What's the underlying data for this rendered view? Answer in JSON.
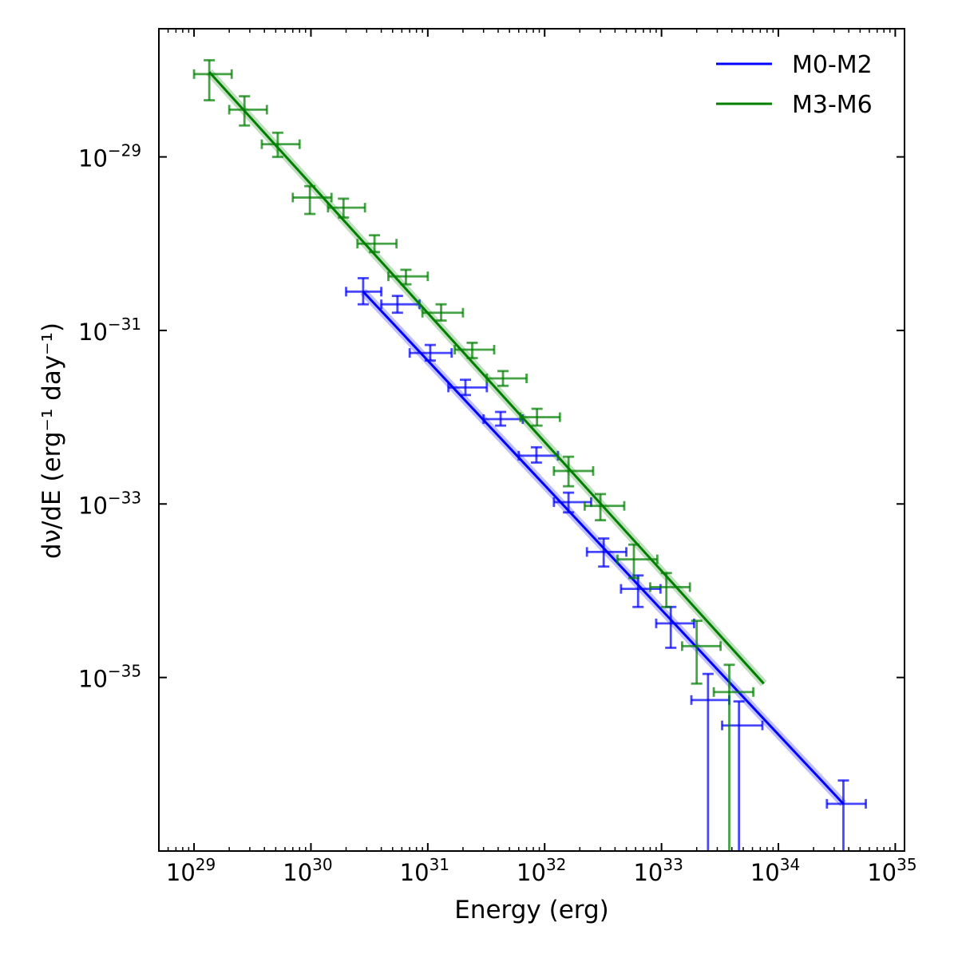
{
  "chart_data": {
    "type": "line",
    "title": "",
    "xlabel": "Energy (erg)",
    "ylabel": "dν/dE (erg⁻¹ day⁻¹)",
    "xscale": "log",
    "yscale": "log",
    "xlim": [
      5e+28,
      1.2e+35
    ],
    "ylim": [
      1e-37,
      3e-28
    ],
    "grid": false,
    "legend_position": "top-right",
    "x_ticks": [
      {
        "base": "10",
        "exp": "29",
        "value": 1e+29
      },
      {
        "base": "10",
        "exp": "30",
        "value": 1e+30
      },
      {
        "base": "10",
        "exp": "31",
        "value": 1e+31
      },
      {
        "base": "10",
        "exp": "32",
        "value": 1e+32
      },
      {
        "base": "10",
        "exp": "33",
        "value": 1e+33
      },
      {
        "base": "10",
        "exp": "34",
        "value": 1e+34
      },
      {
        "base": "10",
        "exp": "35",
        "value": 1e+35
      }
    ],
    "y_ticks": [
      {
        "base": "10",
        "exp": "−29",
        "value": 1e-29
      },
      {
        "base": "10",
        "exp": "−31",
        "value": 1e-31
      },
      {
        "base": "10",
        "exp": "−33",
        "value": 1e-33
      },
      {
        "base": "10",
        "exp": "−35",
        "value": 1e-35
      }
    ],
    "series": [
      {
        "name": "M0-M2",
        "color": "#0000ff",
        "fit": {
          "x": [
            2.8e+30,
            3.6e+34
          ],
          "y": [
            2.8e-31,
            3.5e-37
          ]
        },
        "points": [
          {
            "x": 2.8e+30,
            "xerr": [
              2e+30,
              4e+30
            ],
            "y": 2.8e-31,
            "yerr": [
              2e-31,
              4e-31
            ]
          },
          {
            "x": 5.5e+30,
            "xerr": [
              4e+30,
              8.5e+30
            ],
            "y": 2e-31,
            "yerr": [
              1.6e-31,
              2.5e-31
            ]
          },
          {
            "x": 1.05e+31,
            "xerr": [
              7e+30,
              1.6e+31
            ],
            "y": 5.5e-32,
            "yerr": [
              4.5e-32,
              6.8e-32
            ]
          },
          {
            "x": 2.1e+31,
            "xerr": [
              1.5e+31,
              3.2e+31
            ],
            "y": 2.2e-32,
            "yerr": [
              1.8e-32,
              2.7e-32
            ]
          },
          {
            "x": 4.2e+31,
            "xerr": [
              3e+31,
              6.5e+31
            ],
            "y": 9.5e-33,
            "yerr": [
              8e-33,
              1.15e-32
            ]
          },
          {
            "x": 8.5e+31,
            "xerr": [
              6e+31,
              1.3e+32
            ],
            "y": 3.6e-33,
            "yerr": [
              3e-33,
              4.5e-33
            ]
          },
          {
            "x": 1.6e+32,
            "xerr": [
              1.2e+32,
              2.5e+32
            ],
            "y": 1.05e-33,
            "yerr": [
              8e-34,
              1.35e-33
            ]
          },
          {
            "x": 3.2e+32,
            "xerr": [
              2.3e+32,
              5e+32
            ],
            "y": 2.8e-34,
            "yerr": [
              1.9e-34,
              4e-34
            ]
          },
          {
            "x": 6.3e+32,
            "xerr": [
              4.5e+32,
              9.8e+32
            ],
            "y": 1.05e-34,
            "yerr": [
              6.5e-35,
              1.5e-34
            ]
          },
          {
            "x": 1.2e+33,
            "xerr": [
              9e+32,
              1.9e+33
            ],
            "y": 4.2e-35,
            "yerr": [
              2.2e-35,
              6.5e-35
            ]
          },
          {
            "x": 2.5e+33,
            "xerr": [
              1.8e+33,
              3.8e+33
            ],
            "y": 5.5e-36,
            "yerr": [
              1e-37,
              1.1e-35
            ]
          },
          {
            "x": 4.6e+33,
            "xerr": [
              3.3e+33,
              7.3e+33
            ],
            "y": 2.8e-36,
            "yerr": [
              1e-37,
              5.3e-36
            ]
          },
          {
            "x": 3.6e+34,
            "xerr": [
              2.6e+34,
              5.6e+34
            ],
            "y": 3.5e-37,
            "yerr": [
              1e-37,
              6.5e-37
            ]
          }
        ]
      },
      {
        "name": "M3-M6",
        "color": "#007f00",
        "fit": {
          "x": [
            1.35e+29,
            7.5e+33
          ],
          "y": [
            9.5e-29,
            8.5e-36
          ]
        },
        "points": [
          {
            "x": 1.35e+29,
            "xerr": [
              1e+29,
              2.1e+29
            ],
            "y": 9e-29,
            "yerr": [
              4.5e-29,
              1.3e-28
            ]
          },
          {
            "x": 2.7e+29,
            "xerr": [
              2e+29,
              4.2e+29
            ],
            "y": 3.5e-29,
            "yerr": [
              2.3e-29,
              5e-29
            ]
          },
          {
            "x": 5.2e+29,
            "xerr": [
              3.8e+29,
              8e+29
            ],
            "y": 1.4e-29,
            "yerr": [
              1e-29,
              1.9e-29
            ]
          },
          {
            "x": 9.8e+29,
            "xerr": [
              7e+29,
              1.5e+30
            ],
            "y": 3.4e-30,
            "yerr": [
              2.2e-30,
              4.6e-30
            ]
          },
          {
            "x": 1.9e+30,
            "xerr": [
              1.4e+30,
              2.9e+30
            ],
            "y": 2.6e-30,
            "yerr": [
              2e-30,
              3.3e-30
            ]
          },
          {
            "x": 3.5e+30,
            "xerr": [
              2.5e+30,
              5.4e+30
            ],
            "y": 1e-30,
            "yerr": [
              8e-31,
              1.25e-30
            ]
          },
          {
            "x": 6.5e+30,
            "xerr": [
              4.6e+30,
              1e+31
            ],
            "y": 4.2e-31,
            "yerr": [
              3.4e-31,
              5e-31
            ]
          },
          {
            "x": 1.3e+31,
            "xerr": [
              9e+30,
              2e+31
            ],
            "y": 1.6e-31,
            "yerr": [
              1.3e-31,
              2e-31
            ]
          },
          {
            "x": 2.4e+31,
            "xerr": [
              1.7e+31,
              3.7e+31
            ],
            "y": 6e-32,
            "yerr": [
              4.8e-32,
              7.2e-32
            ]
          },
          {
            "x": 4.4e+31,
            "xerr": [
              3.2e+31,
              7e+31
            ],
            "y": 2.8e-32,
            "yerr": [
              2.3e-32,
              3.4e-32
            ]
          },
          {
            "x": 8.6e+31,
            "xerr": [
              6.2e+31,
              1.35e+32
            ],
            "y": 1e-32,
            "yerr": [
              8e-33,
              1.25e-32
            ]
          },
          {
            "x": 1.6e+32,
            "xerr": [
              1.2e+32,
              2.6e+32
            ],
            "y": 2.4e-33,
            "yerr": [
              1.6e-33,
              3.5e-33
            ]
          },
          {
            "x": 3e+32,
            "xerr": [
              2.2e+32,
              4.8e+32
            ],
            "y": 9.5e-34,
            "yerr": [
              6.5e-34,
              1.3e-33
            ]
          },
          {
            "x": 5.8e+32,
            "xerr": [
              4.2e+32,
              9.2e+32
            ],
            "y": 2.3e-34,
            "yerr": [
              1.4e-34,
              3.4e-34
            ]
          },
          {
            "x": 1.1e+33,
            "xerr": [
              8e+32,
              1.75e+33
            ],
            "y": 1.1e-34,
            "yerr": [
              6.5e-35,
              1.6e-34
            ]
          },
          {
            "x": 2e+33,
            "xerr": [
              1.5e+33,
              3.2e+33
            ],
            "y": 2.3e-35,
            "yerr": [
              8.5e-36,
              4.5e-35
            ]
          },
          {
            "x": 3.8e+33,
            "xerr": [
              2.8e+33,
              6.1e+33
            ],
            "y": 6.8e-36,
            "yerr": [
              1e-37,
              1.4e-35
            ]
          }
        ]
      }
    ]
  }
}
